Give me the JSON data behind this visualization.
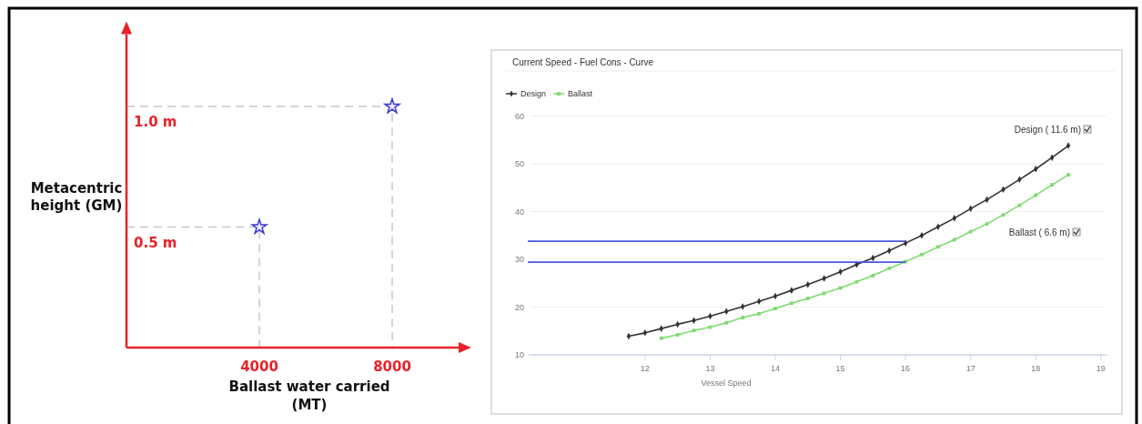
{
  "chart_data": [
    {
      "type": "scatter",
      "xlabel": "Ballast water carried\n(MT)",
      "ylabel": "Metacentric\nheight (GM)",
      "xlim": [
        0,
        10000
      ],
      "ylim": [
        0,
        1.3
      ],
      "xticks": [
        4000,
        8000
      ],
      "yticks": [
        {
          "value": 0.5,
          "label": "0.5 m"
        },
        {
          "value": 1.0,
          "label": "1.0 m"
        }
      ],
      "series": [
        {
          "color": "#3a3ad0",
          "marker": "star",
          "x": [
            4000,
            8000
          ],
          "values": [
            0.5,
            1.0
          ]
        },
        {
          "type": "line",
          "color": "#c8c8c8",
          "line_style": "dashed",
          "marker": "none",
          "x": [
            0,
            4000,
            4000
          ],
          "values": [
            0.5,
            0.5,
            0
          ]
        },
        {
          "type": "line",
          "color": "#c8c8c8",
          "line_style": "dashed",
          "marker": "none",
          "x": [
            0,
            8000,
            8000
          ],
          "values": [
            1.0,
            1.0,
            0
          ]
        }
      ]
    },
    {
      "type": "line",
      "title": "Current Speed -   Fuel Cons - Curve",
      "xlabel": "Vessel Speed",
      "xlim": [
        10.2,
        19.1
      ],
      "ylim": [
        10,
        60
      ],
      "xticks": [
        12,
        13,
        14,
        15,
        16,
        17,
        18,
        19
      ],
      "yticks": [
        10,
        20,
        30,
        40,
        50,
        60
      ],
      "grid": "y",
      "legend": "top left",
      "annotations": [
        "Design ( 11.6 m)",
        "Ballast ( 6.6 m)"
      ],
      "series": [
        {
          "name": "Design",
          "color": "#333333",
          "marker": "diamond",
          "x": [
            11.75,
            12,
            12.25,
            12.5,
            12.75,
            13,
            13.25,
            13.5,
            13.75,
            14,
            14.25,
            14.5,
            14.75,
            15,
            15.25,
            15.5,
            15.75,
            16,
            16.25,
            16.5,
            16.75,
            17,
            17.25,
            17.5,
            17.75,
            18,
            18.25,
            18.5
          ],
          "values": [
            13.9,
            14.6,
            15.5,
            16.4,
            17.2,
            18.1,
            19.1,
            20.1,
            21.2,
            22.3,
            23.5,
            24.7,
            26.0,
            27.4,
            28.9,
            30.3,
            31.8,
            33.4,
            35.0,
            36.8,
            38.6,
            40.6,
            42.5,
            44.6,
            46.7,
            48.9,
            51.3,
            53.8
          ]
        },
        {
          "name": "Ballast",
          "color": "#7ddc6e",
          "marker": "square",
          "x": [
            12.25,
            12.5,
            12.75,
            13,
            13.25,
            13.5,
            13.75,
            14,
            14.25,
            14.5,
            14.75,
            15,
            15.25,
            15.5,
            15.75,
            16,
            16.25,
            16.5,
            16.75,
            17,
            17.25,
            17.5,
            17.75,
            18,
            18.25,
            18.5
          ],
          "values": [
            13.5,
            14.2,
            15.1,
            15.8,
            16.7,
            17.8,
            18.6,
            19.7,
            20.8,
            21.8,
            22.9,
            24.0,
            25.3,
            26.6,
            28.1,
            29.5,
            31.0,
            32.6,
            34.1,
            35.8,
            37.4,
            39.3,
            41.3,
            43.4,
            45.6,
            47.7
          ]
        },
        {
          "color": "#4a56dc",
          "marker": "none",
          "x": [
            10.2,
            16
          ],
          "values": [
            33.8,
            33.8
          ]
        },
        {
          "color": "#4a56dc",
          "marker": "none",
          "x": [
            10.2,
            16
          ],
          "values": [
            29.4,
            29.4
          ]
        }
      ]
    }
  ]
}
